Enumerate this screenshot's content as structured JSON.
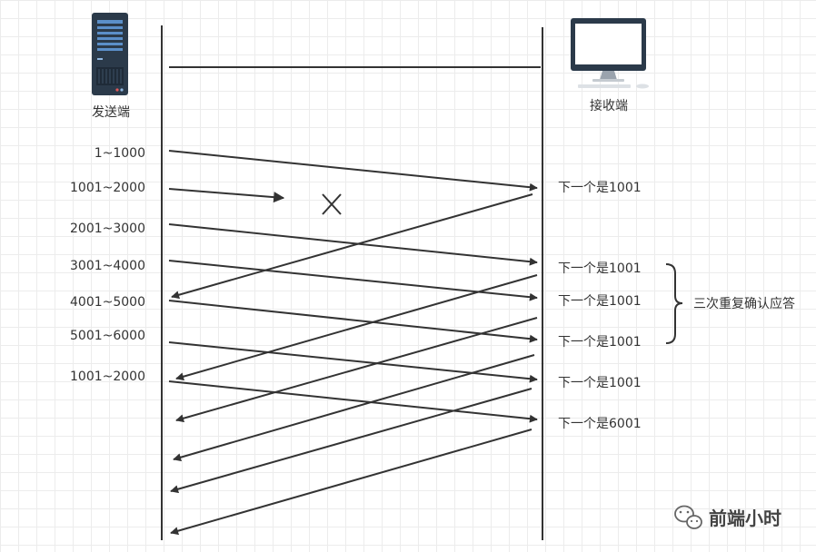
{
  "sender": {
    "label": "发送端",
    "icon": "server-icon"
  },
  "receiver": {
    "label": "接收端",
    "icon": "monitor-icon"
  },
  "segments": [
    {
      "label": "1~1000",
      "status": "delivered"
    },
    {
      "label": "1001~2000",
      "status": "lost"
    },
    {
      "label": "2001~3000",
      "status": "delivered"
    },
    {
      "label": "3001~4000",
      "status": "delivered"
    },
    {
      "label": "4001~5000",
      "status": "delivered"
    },
    {
      "label": "5001~6000",
      "status": "delivered"
    },
    {
      "label": "1001~2000",
      "status": "retransmitted"
    }
  ],
  "acks": [
    {
      "label": "下一个是1001"
    },
    {
      "label": "下一个是1001"
    },
    {
      "label": "下一个是1001"
    },
    {
      "label": "下一个是1001"
    },
    {
      "label": "下一个是1001"
    },
    {
      "label": "下一个是6001"
    }
  ],
  "brace": {
    "label": "三次重复确认应答"
  },
  "watermark": {
    "text": "前端小时",
    "icon": "wechat-icon"
  },
  "colors": {
    "line": "#333333",
    "grid": "#ececec",
    "server": "#2b3a4a",
    "server_accent": "#5b8fc9"
  }
}
